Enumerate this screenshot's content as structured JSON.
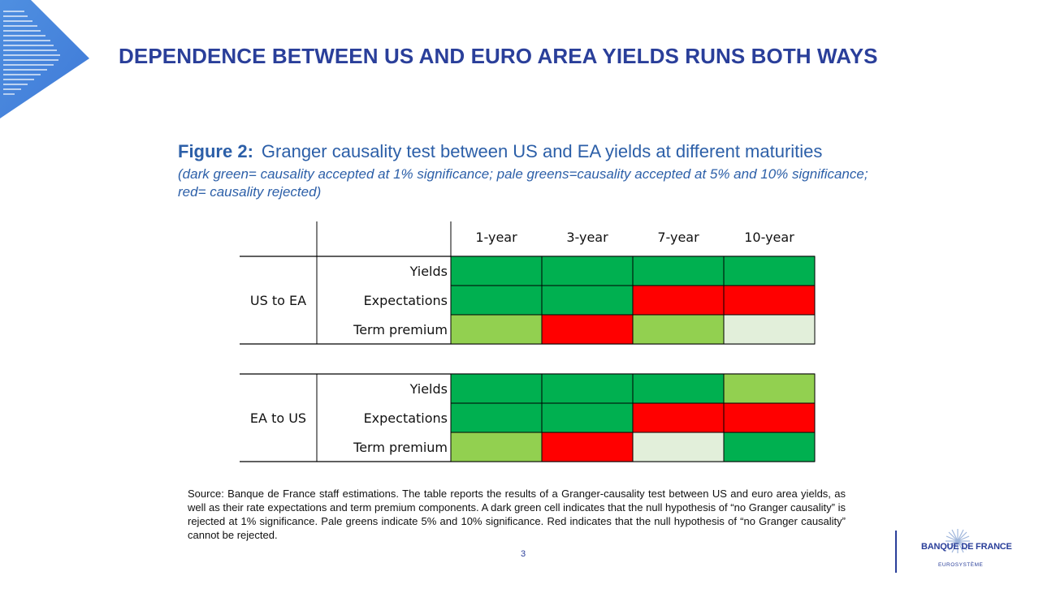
{
  "slide": {
    "title": "DEPENDENCE BETWEEN US AND EURO AREA YIELDS RUNS BOTH WAYS",
    "page_number": "3"
  },
  "figure": {
    "label": "Figure 2:",
    "caption": "Granger causality test between US and EA yields at different maturities",
    "legend_note": "(dark green= causality accepted at 1% significance; pale greens=causality accepted at 5% and 10% significance; red= causality rejected)"
  },
  "source_note": "Source: Banque de France staff estimations. The table reports the results of a Granger-causality test between US and euro area yields, as well as their rate expectations and term premium components. A dark green cell indicates that the null hypothesis of “no Granger causality” is rejected at 1% significance. Pale greens indicate 5% and 10% significance. Red indicates that the null hypothesis of “no Granger causality” cannot be rejected.",
  "logo": {
    "brand": "BANQUE DE FRANCE",
    "sub": "EUROSYSTÈME",
    "emblem": "bdf-star-emblem-icon"
  },
  "colors": {
    "title": "#2a3f9a",
    "caption": "#2c5fa8",
    "1pct": "#00b050",
    "5pct": "#92d050",
    "10pct": "#e2efda",
    "rejected": "#ff0000"
  },
  "chart_data": {
    "type": "heatmap",
    "columns": [
      "1-year",
      "3-year",
      "7-year",
      "10-year"
    ],
    "row_labels": [
      "Yields",
      "Expectations",
      "Term premium"
    ],
    "groups": [
      {
        "name": "US to EA",
        "cells": [
          [
            "1pct",
            "1pct",
            "1pct",
            "1pct"
          ],
          [
            "1pct",
            "1pct",
            "rejected",
            "rejected"
          ],
          [
            "5pct",
            "rejected",
            "5pct",
            "10pct"
          ]
        ]
      },
      {
        "name": "EA to US",
        "cells": [
          [
            "1pct",
            "1pct",
            "1pct",
            "5pct"
          ],
          [
            "1pct",
            "1pct",
            "rejected",
            "rejected"
          ],
          [
            "5pct",
            "rejected",
            "10pct",
            "1pct"
          ]
        ]
      }
    ],
    "categories_legend": {
      "1pct": "causality accepted at 1% significance",
      "5pct": "causality accepted at 5% significance",
      "10pct": "causality accepted at 10% significance",
      "rejected": "causality rejected"
    }
  }
}
